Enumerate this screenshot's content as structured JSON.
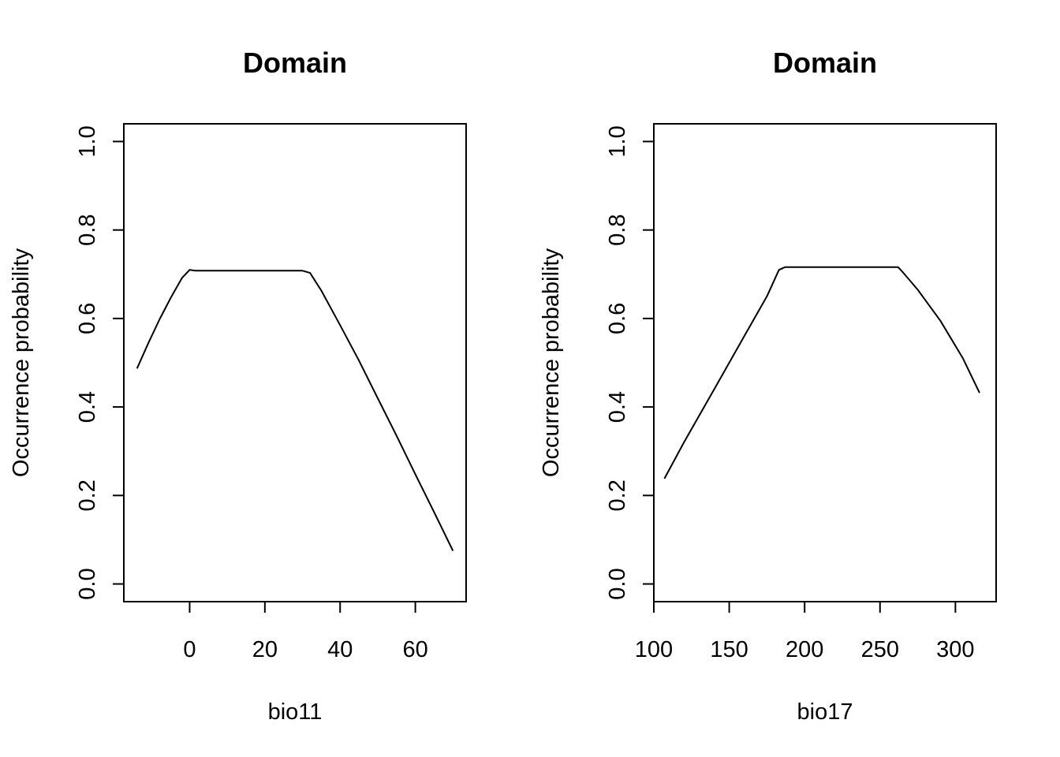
{
  "chart_data": [
    {
      "type": "line",
      "title": "Domain",
      "xlabel": "bio11",
      "ylabel": "Occurrence probability",
      "xlim": [
        -17.5,
        73.5
      ],
      "ylim": [
        -0.04,
        1.04
      ],
      "xticks": [
        0,
        20,
        40,
        60
      ],
      "yticks": [
        0.0,
        0.2,
        0.4,
        0.6,
        0.8,
        1.0
      ],
      "xtick_labels": [
        "0",
        "20",
        "40",
        "60"
      ],
      "ytick_labels": [
        "0.0",
        "0.2",
        "0.4",
        "0.6",
        "0.8",
        "1.0"
      ],
      "x": [
        -14,
        -11,
        -8,
        -5,
        -2,
        0,
        1.5,
        30,
        32,
        35,
        40,
        45,
        50,
        55,
        60,
        65,
        70
      ],
      "y": [
        0.487,
        0.544,
        0.598,
        0.647,
        0.692,
        0.71,
        0.708,
        0.708,
        0.703,
        0.663,
        0.585,
        0.505,
        0.42,
        0.335,
        0.248,
        0.162,
        0.075
      ]
    },
    {
      "type": "line",
      "title": "Domain",
      "xlabel": "bio17",
      "ylabel": "Occurrence probability",
      "xlim": [
        100,
        327
      ],
      "ylim": [
        -0.04,
        1.04
      ],
      "xticks": [
        100,
        150,
        200,
        250,
        300
      ],
      "yticks": [
        0.0,
        0.2,
        0.4,
        0.6,
        0.8,
        1.0
      ],
      "xtick_labels": [
        "100",
        "150",
        "200",
        "250",
        "300"
      ],
      "ytick_labels": [
        "0.0",
        "0.2",
        "0.4",
        "0.6",
        "0.8",
        "1.0"
      ],
      "x": [
        107,
        120,
        140,
        160,
        175,
        183,
        187,
        262,
        265,
        275,
        290,
        305,
        316
      ],
      "y": [
        0.238,
        0.32,
        0.44,
        0.56,
        0.65,
        0.71,
        0.716,
        0.716,
        0.705,
        0.665,
        0.595,
        0.51,
        0.432
      ]
    }
  ]
}
